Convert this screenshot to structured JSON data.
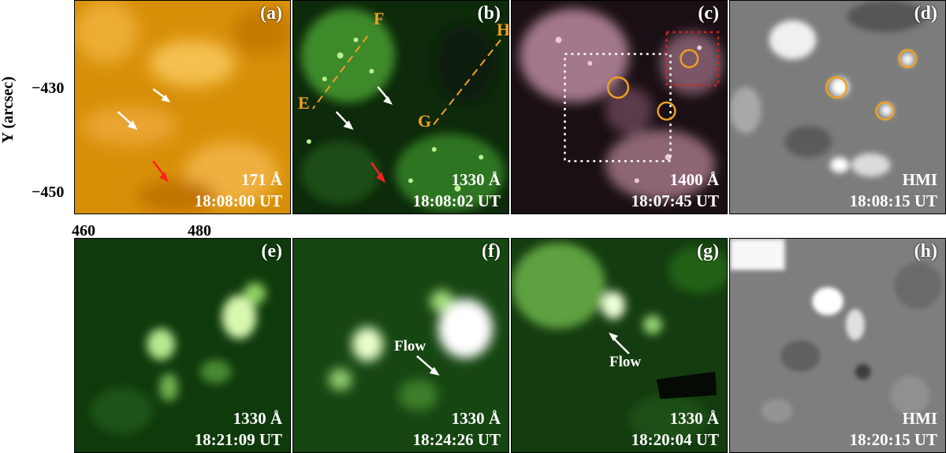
{
  "axis": {
    "ylabel": "Y (arcsec)",
    "yticks": [
      "−430",
      "−450"
    ],
    "xticks": [
      "460",
      "480"
    ]
  },
  "panels": {
    "a": {
      "label": "(a)",
      "wave": "171 Å",
      "time": "18:08:00 UT"
    },
    "b": {
      "label": "(b)",
      "wave": "1330 Å",
      "time": "18:08:02 UT",
      "marks": [
        "F",
        "H",
        "E",
        "G"
      ]
    },
    "c": {
      "label": "(c)",
      "wave": "1400 Å",
      "time": "18:07:45 UT"
    },
    "d": {
      "label": "(d)",
      "wave": "HMI",
      "time": "18:08:15 UT"
    },
    "e": {
      "label": "(e)",
      "wave": "1330 Å",
      "time": "18:21:09 UT"
    },
    "f": {
      "label": "(f)",
      "wave": "1330 Å",
      "time": "18:24:26 UT",
      "flow": "Flow"
    },
    "g": {
      "label": "(g)",
      "wave": "1330 Å",
      "time": "18:20:04 UT",
      "flow": "Flow"
    },
    "h": {
      "label": "(h)",
      "wave": "HMI",
      "time": "18:20:15 UT"
    }
  },
  "colors": {
    "arrow": "#ffffff",
    "arrow_red": "#ff2020",
    "marker_orange": "#f0a020",
    "box_red": "#e02020",
    "box_white": "#ffffff"
  }
}
